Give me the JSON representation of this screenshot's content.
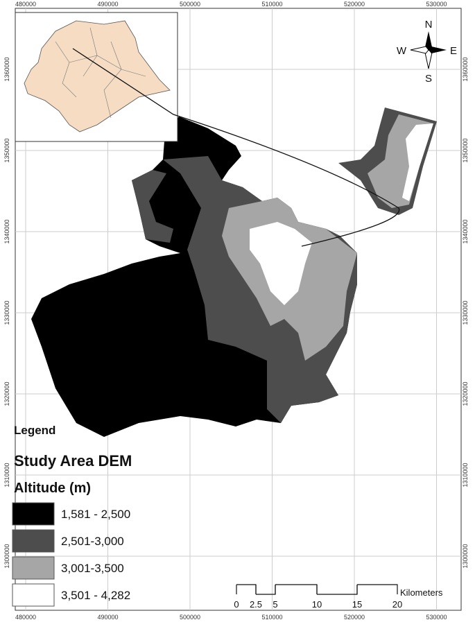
{
  "grid": {
    "x_labels": [
      "480000",
      "490000",
      "500000",
      "510000",
      "520000",
      "530000"
    ],
    "y_labels": [
      "1360000",
      "1350000",
      "1340000",
      "1330000",
      "1320000",
      "1310000",
      "1300000"
    ]
  },
  "compass": {
    "n": "N",
    "s": "S",
    "e": "E",
    "w": "W"
  },
  "legend": {
    "title": "Legend",
    "subtitle": "Study Area DEM",
    "heading": "Altitude (m)",
    "classes": [
      {
        "label": "1,581 - 2,500",
        "color": "#000000"
      },
      {
        "label": "2,501-3,000",
        "color": "#4d4d4d"
      },
      {
        "label": "3,001-3,500",
        "color": "#a6a6a6"
      },
      {
        "label": "3,501 - 4,282",
        "color": "#ffffff"
      }
    ]
  },
  "scale_bar": {
    "labels": [
      "0",
      "2.5",
      "5",
      "10",
      "15",
      "20"
    ],
    "unit": "Kilometers"
  }
}
